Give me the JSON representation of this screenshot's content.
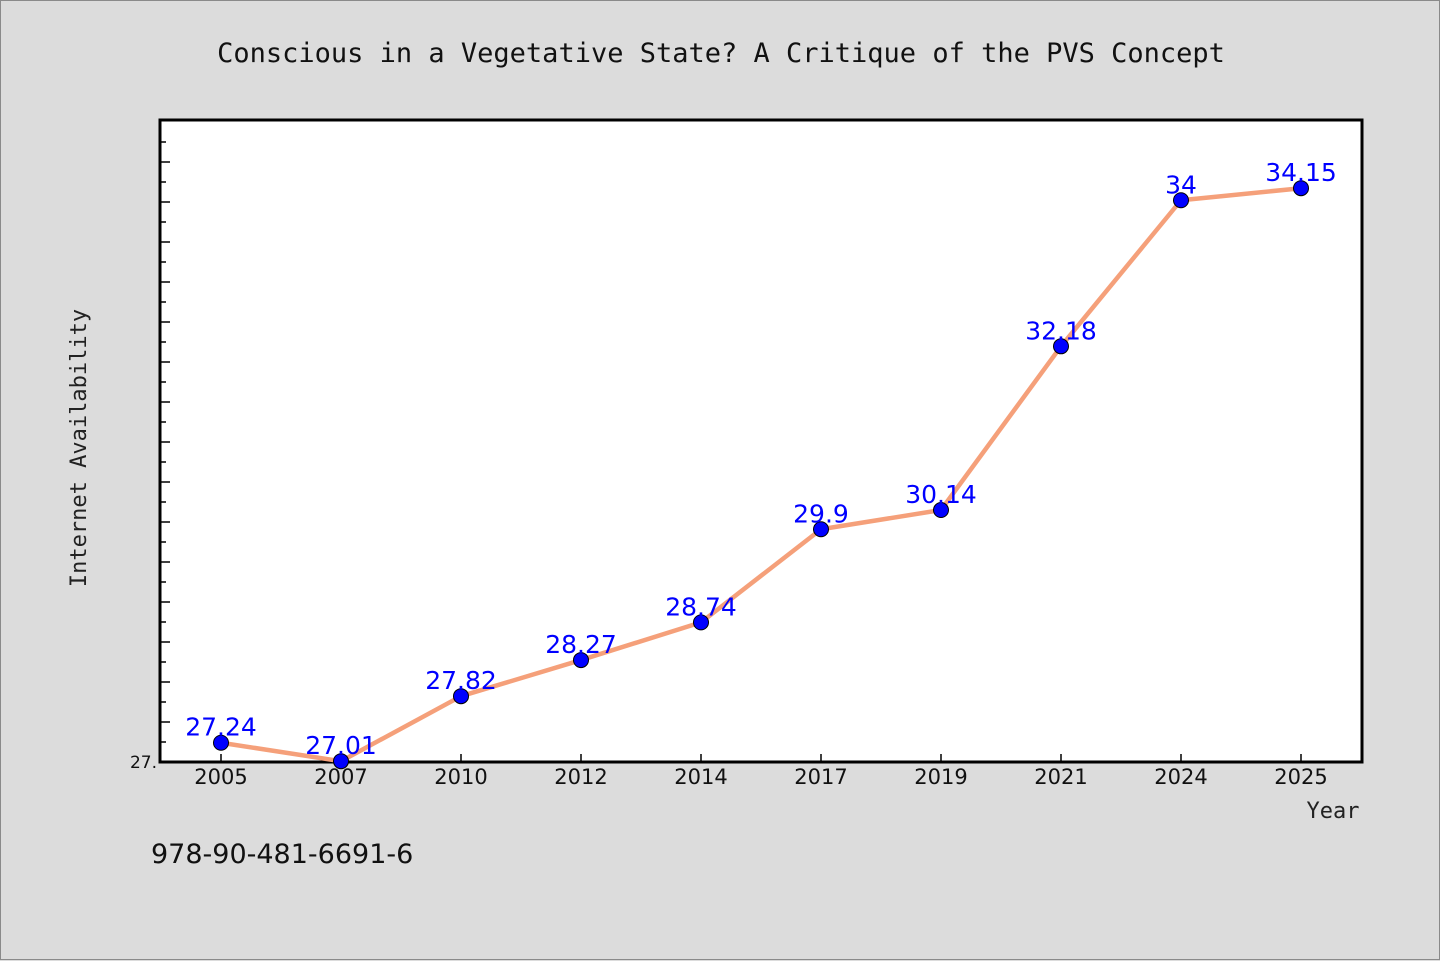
{
  "footnote": "978-90-481-6691-6",
  "colors": {
    "line": "#f5a07a",
    "marker": "#0000ff",
    "label": "#0000ff",
    "background": "#dcdcdc",
    "plot_bg": "#ffffff"
  },
  "chart_data": {
    "type": "line",
    "title": "Conscious in a Vegetative State? A Critique of the PVS Concept",
    "xlabel": "Year",
    "ylabel": "Internet Availability",
    "categories": [
      "2005",
      "2007",
      "2010",
      "2012",
      "2014",
      "2017",
      "2019",
      "2021",
      "2024",
      "2025"
    ],
    "series": [
      {
        "values": [
          27.24,
          27.01,
          27.82,
          28.27,
          28.74,
          29.9,
          30.14,
          32.18,
          34,
          34.15
        ]
      }
    ],
    "data_labels": [
      "27.24",
      "27.01",
      "27.82",
      "28.27",
      "28.74",
      "29.9",
      "30.14",
      "32.18",
      "34",
      "34.15"
    ],
    "ytick_labels": [
      "27."
    ],
    "ylim": [
      27,
      35
    ],
    "grid": false,
    "legend": "none"
  }
}
